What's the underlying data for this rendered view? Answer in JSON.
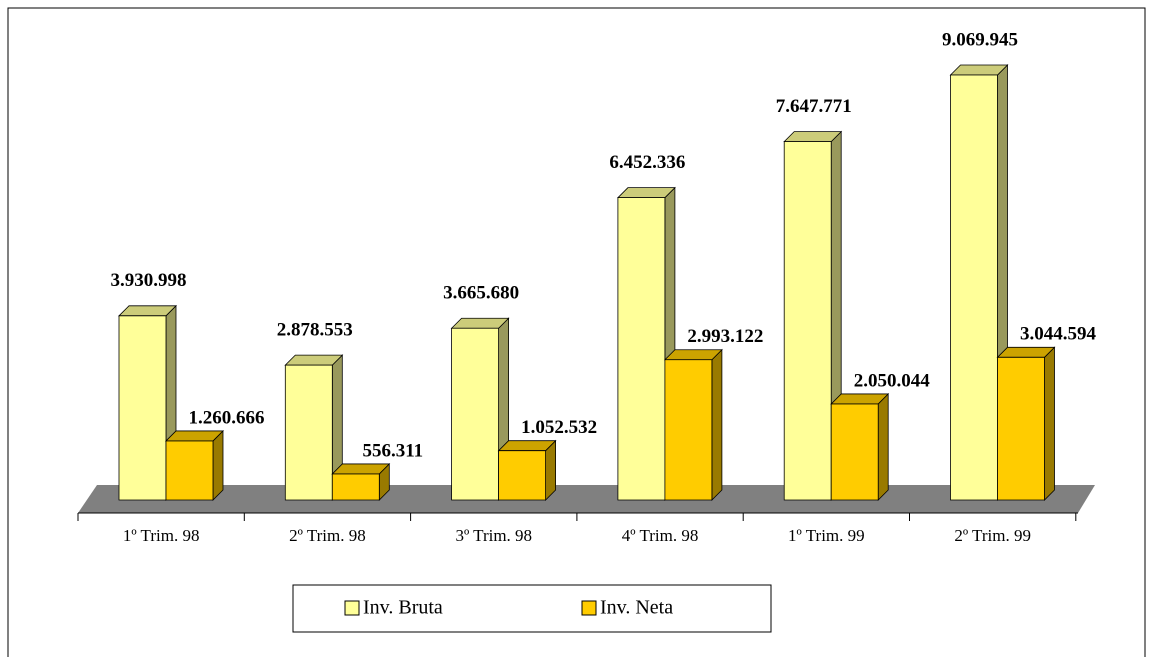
{
  "chart_data": {
    "type": "bar3d",
    "categories": [
      "1º Trim. 98",
      "2º Trim. 98",
      "3º Trim. 98",
      "4º Trim. 98",
      "1º Trim. 99",
      "2º Trim. 99"
    ],
    "series": [
      {
        "name": "Inv. Bruta",
        "color": "#ffff99",
        "values": [
          3930998,
          2878553,
          3665680,
          6452336,
          7647771,
          9069945
        ],
        "value_labels": [
          "3.930.998",
          "2.878.553",
          "3.665.680",
          "6.452.336",
          "7.647.771",
          "9.069.945"
        ]
      },
      {
        "name": "Inv. Neta",
        "color": "#ffcc00",
        "values": [
          1260666,
          556311,
          1052532,
          2993122,
          2050044,
          3044594
        ],
        "value_labels": [
          "1.260.666",
          "556.311",
          "1.052.532",
          "2.993.122",
          "2.050.044",
          "3.044.594"
        ]
      }
    ],
    "legend": "bottom"
  }
}
